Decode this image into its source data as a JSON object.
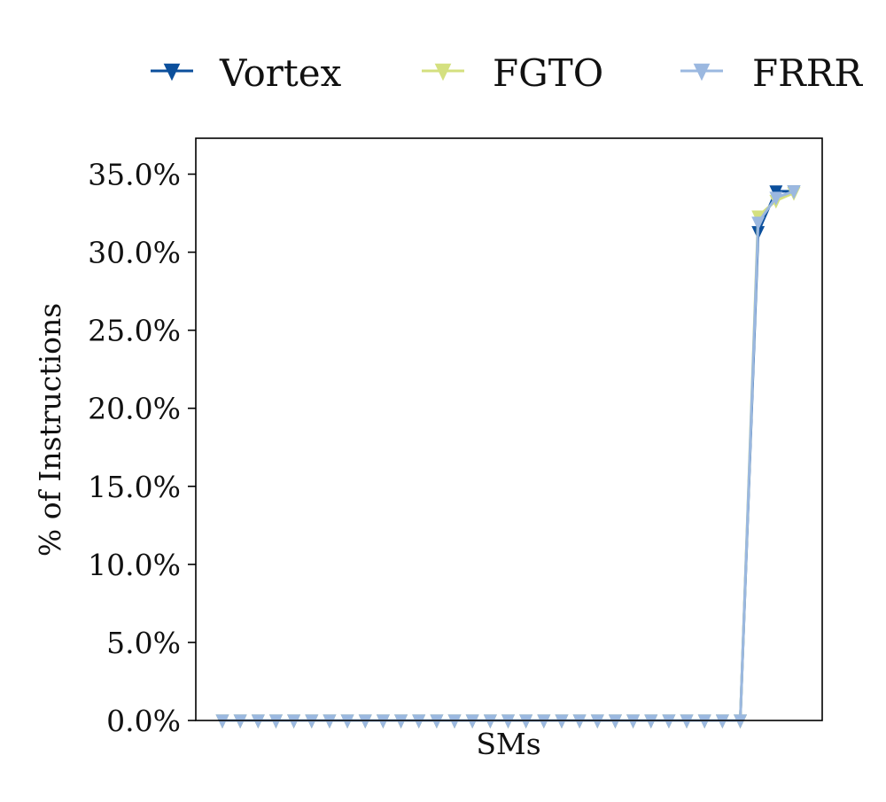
{
  "chart_data": {
    "type": "line",
    "title": "",
    "xlabel": "SMs",
    "ylabel": "% of Instructions",
    "ylim": [
      0,
      37.3
    ],
    "y_ticks": [
      "0.0%",
      "5.0%",
      "10.0%",
      "15.0%",
      "20.0%",
      "25.0%",
      "30.0%",
      "35.0%"
    ],
    "y_tick_values": [
      0,
      5,
      10,
      15,
      20,
      25,
      30,
      35
    ],
    "x_tick_labels_shown": false,
    "grid": false,
    "legend_position": "top",
    "marker": "triangle-down",
    "x": [
      1,
      2,
      3,
      4,
      5,
      6,
      7,
      8,
      9,
      10,
      11,
      12,
      13,
      14,
      15,
      16,
      17,
      18,
      19,
      20,
      21,
      22,
      23,
      24,
      25,
      26,
      27,
      28,
      29,
      30,
      31,
      32,
      33
    ],
    "series": [
      {
        "name": "Vortex",
        "color": "#0b4f9c",
        "values": [
          0,
          0,
          0,
          0,
          0,
          0,
          0,
          0,
          0,
          0,
          0,
          0,
          0,
          0,
          0,
          0,
          0,
          0,
          0,
          0,
          0,
          0,
          0,
          0,
          0,
          0,
          0,
          0,
          0,
          0,
          31.3,
          33.9,
          33.9
        ]
      },
      {
        "name": "FGTO",
        "color": "#d4e07f",
        "values": [
          0,
          0,
          0,
          0,
          0,
          0,
          0,
          0,
          0,
          0,
          0,
          0,
          0,
          0,
          0,
          0,
          0,
          0,
          0,
          0,
          0,
          0,
          0,
          0,
          0,
          0,
          0,
          0,
          0,
          0,
          32.3,
          33.3,
          33.8
        ]
      },
      {
        "name": "FRRR",
        "color": "#9bb8e0",
        "values": [
          0,
          0,
          0,
          0,
          0,
          0,
          0,
          0,
          0,
          0,
          0,
          0,
          0,
          0,
          0,
          0,
          0,
          0,
          0,
          0,
          0,
          0,
          0,
          0,
          0,
          0,
          0,
          0,
          0,
          0,
          31.9,
          33.5,
          33.9
        ]
      }
    ]
  }
}
